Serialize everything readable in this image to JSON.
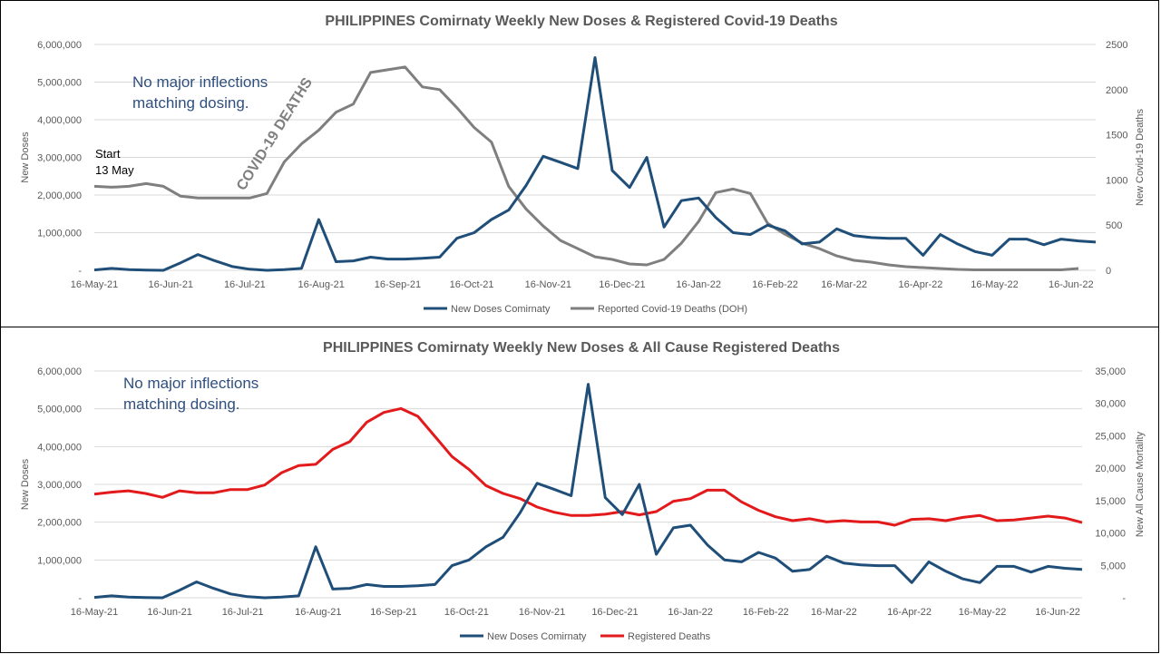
{
  "chart_data": [
    {
      "type": "line",
      "title": "PHILIPPINES Comirnaty Weekly New Doses & Registered Covid-19 Deaths",
      "xlabel": "",
      "ylabel": "New Doses",
      "y2label": "New Covid-19 Deaths",
      "ylim": [
        0,
        6000000
      ],
      "y2lim": [
        0,
        2500
      ],
      "yticks": [
        "-",
        "1,000,000",
        "2,000,000",
        "3,000,000",
        "4,000,000",
        "5,000,000",
        "6,000,000"
      ],
      "y2ticks": [
        "0",
        "500",
        "1000",
        "1500",
        "2000",
        "2500"
      ],
      "xticks": [
        "16-May-21",
        "16-Jun-21",
        "16-Jul-21",
        "16-Aug-21",
        "16-Sep-21",
        "16-Oct-21",
        "16-Nov-21",
        "16-Dec-21",
        "16-Jan-22",
        "16-Feb-22",
        "16-Mar-22",
        "16-Apr-22",
        "16-May-22",
        "16-Jun-22"
      ],
      "x_start": "2021-05-16",
      "x_step_days": 7,
      "legend_position": "bottom",
      "annotations": {
        "no_inflections": [
          "No major inflections",
          "matching dosing."
        ],
        "start": [
          "Start",
          "13 May"
        ],
        "covid_deaths": "COVID-19 DEATHS"
      },
      "colors": {
        "doses": "#1f4e79",
        "deaths": "#7f7f7f"
      },
      "series": [
        {
          "name": "New Doses Comirnaty",
          "axis": "left",
          "values": [
            10000,
            50000,
            20000,
            5000,
            0,
            200000,
            420000,
            250000,
            100000,
            30000,
            0,
            20000,
            50000,
            1350000,
            230000,
            250000,
            350000,
            300000,
            300000,
            320000,
            350000,
            850000,
            1000000,
            1350000,
            1600000,
            2250000,
            3030000,
            2870000,
            2700000,
            5650000,
            2650000,
            2200000,
            3000000,
            1150000,
            1850000,
            1920000,
            1400000,
            1000000,
            950000,
            1200000,
            1050000,
            700000,
            750000,
            1100000,
            920000,
            870000,
            850000,
            850000,
            400000,
            950000,
            700000,
            500000,
            400000,
            830000,
            830000,
            680000,
            830000,
            780000,
            750000
          ]
        },
        {
          "name": "Reported Covid-19 Deaths (DOH)",
          "axis": "right",
          "values": [
            930,
            920,
            930,
            960,
            930,
            820,
            800,
            800,
            800,
            800,
            850,
            1200,
            1400,
            1550,
            1750,
            1840,
            2190,
            2220,
            2250,
            2030,
            2000,
            1800,
            1580,
            1420,
            930,
            680,
            490,
            330,
            240,
            150,
            120,
            70,
            60,
            120,
            300,
            540,
            860,
            900,
            850,
            520,
            400,
            300,
            240,
            160,
            110,
            90,
            60,
            40,
            30,
            20,
            10,
            5,
            5,
            5,
            5,
            5,
            5,
            20
          ]
        }
      ]
    },
    {
      "type": "line",
      "title": "PHILIPPINES Comirnaty Weekly New Doses & All Cause Registered Deaths",
      "xlabel": "",
      "ylabel": "New Doses",
      "y2label": "New All Cause Mortality",
      "ylim": [
        0,
        6000000
      ],
      "y2lim": [
        0,
        35000
      ],
      "yticks": [
        "-",
        "1,000,000",
        "2,000,000",
        "3,000,000",
        "4,000,000",
        "5,000,000",
        "6,000,000"
      ],
      "y2ticks": [
        "-",
        "5,000",
        "10,000",
        "15,000",
        "20,000",
        "25,000",
        "30,000",
        "35,000"
      ],
      "xticks": [
        "16-May-21",
        "16-Jun-21",
        "16-Jul-21",
        "16-Aug-21",
        "16-Sep-21",
        "16-Oct-21",
        "16-Nov-21",
        "16-Dec-21",
        "16-Jan-22",
        "16-Feb-22",
        "16-Mar-22",
        "16-Apr-22",
        "16-May-22",
        "16-Jun-22"
      ],
      "x_start": "2021-05-16",
      "x_step_days": 7,
      "legend_position": "bottom",
      "annotations": {
        "no_inflections": [
          "No major inflections",
          "matching dosing."
        ]
      },
      "colors": {
        "doses": "#1f4e79",
        "deaths": "#e31a1c"
      },
      "series": [
        {
          "name": "New Doses Comirnaty",
          "axis": "left",
          "values": [
            10000,
            50000,
            20000,
            5000,
            0,
            200000,
            420000,
            250000,
            100000,
            30000,
            0,
            20000,
            50000,
            1350000,
            230000,
            250000,
            350000,
            300000,
            300000,
            320000,
            350000,
            850000,
            1000000,
            1350000,
            1600000,
            2250000,
            3030000,
            2870000,
            2700000,
            5650000,
            2650000,
            2200000,
            3000000,
            1150000,
            1850000,
            1920000,
            1400000,
            1000000,
            950000,
            1200000,
            1050000,
            700000,
            750000,
            1100000,
            920000,
            870000,
            850000,
            850000,
            400000,
            950000,
            700000,
            500000,
            400000,
            830000,
            830000,
            680000,
            830000,
            780000,
            750000
          ]
        },
        {
          "name": "Registered Deaths",
          "axis": "right",
          "values": [
            16000,
            16300,
            16500,
            16100,
            15500,
            16500,
            16200,
            16200,
            16700,
            16700,
            17400,
            19300,
            20400,
            20600,
            22900,
            24100,
            27100,
            28600,
            29200,
            28000,
            24900,
            21800,
            19800,
            17300,
            16100,
            15300,
            14000,
            13200,
            12700,
            12700,
            12900,
            13300,
            12800,
            13300,
            14900,
            15300,
            16600,
            16600,
            14800,
            13500,
            12500,
            11900,
            12200,
            11700,
            11900,
            11700,
            11700,
            11200,
            12100,
            12200,
            11900,
            12400,
            12700,
            11900,
            12000,
            12300,
            12600,
            12300,
            11600
          ]
        }
      ]
    }
  ]
}
